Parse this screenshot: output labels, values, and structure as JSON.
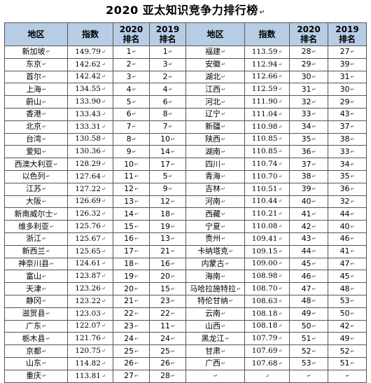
{
  "title": "2020 亚太知识竞争力排行榜",
  "headers": {
    "region": "地区",
    "index": "指数",
    "rank2020_top": "2020",
    "rank2020_bottom": "排名",
    "rank2019_top": "2019",
    "rank2019_bottom": "排名"
  },
  "left_rows": [
    {
      "region": "新加坡",
      "index": "149.79",
      "rank2020": "1",
      "rank2019": "1"
    },
    {
      "region": "东京",
      "index": "142.62",
      "rank2020": "2",
      "rank2019": "3"
    },
    {
      "region": "首尔",
      "index": "142.42",
      "rank2020": "3",
      "rank2019": "2"
    },
    {
      "region": "上海",
      "index": "134.55",
      "rank2020": "4",
      "rank2019": "4"
    },
    {
      "region": "蔚山",
      "index": "133.90",
      "rank2020": "5",
      "rank2019": "6"
    },
    {
      "region": "香港",
      "index": "133.43",
      "rank2020": "6",
      "rank2019": "8"
    },
    {
      "region": "北京",
      "index": "133.31",
      "rank2020": "7",
      "rank2019": "7"
    },
    {
      "region": "台湾",
      "index": "130.58",
      "rank2020": "8",
      "rank2019": "10"
    },
    {
      "region": "爱知",
      "index": "130.36",
      "rank2020": "9",
      "rank2019": "14"
    },
    {
      "region": "西澳大利亚",
      "index": "128.29",
      "rank2020": "10",
      "rank2019": "17"
    },
    {
      "region": "以色列",
      "index": "127.64",
      "rank2020": "11",
      "rank2019": "5"
    },
    {
      "region": "江苏",
      "index": "127.22",
      "rank2020": "12",
      "rank2019": "9"
    },
    {
      "region": "大阪",
      "index": "126.69",
      "rank2020": "13",
      "rank2019": "12"
    },
    {
      "region": "新南威尔士",
      "index": "126.32",
      "rank2020": "14",
      "rank2019": "18"
    },
    {
      "region": "维多利亚",
      "index": "125.76",
      "rank2020": "15",
      "rank2019": "19"
    },
    {
      "region": "浙江",
      "index": "125.67",
      "rank2020": "16",
      "rank2019": "13"
    },
    {
      "region": "新西兰",
      "index": "125.65",
      "rank2020": "17",
      "rank2019": "21"
    },
    {
      "region": "神奈川县",
      "index": "124.61",
      "rank2020": "18",
      "rank2019": "16"
    },
    {
      "region": "富山",
      "index": "123.87",
      "rank2020": "19",
      "rank2019": "20"
    },
    {
      "region": "天津",
      "index": "123.26",
      "rank2020": "20",
      "rank2019": "15"
    },
    {
      "region": "静冈",
      "index": "123.22",
      "rank2020": "21",
      "rank2019": "23"
    },
    {
      "region": "滋贺县",
      "index": "123.03",
      "rank2020": "22",
      "rank2019": "22"
    },
    {
      "region": "广东",
      "index": "122.07",
      "rank2020": "23",
      "rank2019": "11"
    },
    {
      "region": "栃木县",
      "index": "121.76",
      "rank2020": "24",
      "rank2019": "24"
    },
    {
      "region": "京都",
      "index": "120.75",
      "rank2020": "25",
      "rank2019": "25"
    },
    {
      "region": "山东",
      "index": "114.82",
      "rank2020": "26",
      "rank2019": "26"
    },
    {
      "region": "重庆",
      "index": "113.81",
      "rank2020": "27",
      "rank2019": "28"
    }
  ],
  "right_rows": [
    {
      "region": "福建",
      "index": "113.59",
      "rank2020": "28",
      "rank2019": "27"
    },
    {
      "region": "安徽",
      "index": "112.94",
      "rank2020": "29",
      "rank2019": "39"
    },
    {
      "region": "湖北",
      "index": "112.66",
      "rank2020": "30",
      "rank2019": "31"
    },
    {
      "region": "江西",
      "index": "112.59",
      "rank2020": "31",
      "rank2019": "30"
    },
    {
      "region": "河北",
      "index": "111.90",
      "rank2020": "32",
      "rank2019": "29"
    },
    {
      "region": "辽宁",
      "index": "111.04",
      "rank2020": "33",
      "rank2019": "43"
    },
    {
      "region": "新疆",
      "index": "110.98",
      "rank2020": "34",
      "rank2019": "37"
    },
    {
      "region": "陕西",
      "index": "110.85",
      "rank2020": "35",
      "rank2019": "38"
    },
    {
      "region": "湖南",
      "index": "110.85",
      "rank2020": "36",
      "rank2019": "33"
    },
    {
      "region": "四川",
      "index": "110.74",
      "rank2020": "37",
      "rank2019": "34"
    },
    {
      "region": "青海",
      "index": "110.70",
      "rank2020": "38",
      "rank2019": "35"
    },
    {
      "region": "吉林",
      "index": "110.51",
      "rank2020": "39",
      "rank2019": "36"
    },
    {
      "region": "河南",
      "index": "110.44",
      "rank2020": "40",
      "rank2019": "32"
    },
    {
      "region": "西藏",
      "index": "110.21",
      "rank2020": "41",
      "rank2019": "44"
    },
    {
      "region": "宁夏",
      "index": "110.08",
      "rank2020": "42",
      "rank2019": "40"
    },
    {
      "region": "贵州",
      "index": "109.41",
      "rank2020": "43",
      "rank2019": "46"
    },
    {
      "region": "卡纳塔克",
      "index": "109.15",
      "rank2020": "44",
      "rank2019": "41"
    },
    {
      "region": "内蒙古",
      "index": "109.00",
      "rank2020": "45",
      "rank2019": "47"
    },
    {
      "region": "海南",
      "index": "108.98",
      "rank2020": "46",
      "rank2019": "45"
    },
    {
      "region": "马哈拉施特拉",
      "index": "108.70",
      "rank2020": "47",
      "rank2019": "48"
    },
    {
      "region": "特伦甘纳",
      "index": "108.63",
      "rank2020": "48",
      "rank2019": "53"
    },
    {
      "region": "云南",
      "index": "108.18",
      "rank2020": "49",
      "rank2019": "50"
    },
    {
      "region": "山西",
      "index": "108.18",
      "rank2020": "50",
      "rank2019": "42"
    },
    {
      "region": "黑龙江",
      "index": "107.79",
      "rank2020": "51",
      "rank2019": "49"
    },
    {
      "region": "甘肃",
      "index": "107.69",
      "rank2020": "52",
      "rank2019": "52"
    },
    {
      "region": "广西",
      "index": "107.68",
      "rank2020": "53",
      "rank2019": "51"
    },
    {
      "region": "",
      "index": "",
      "rank2020": "",
      "rank2019": ""
    }
  ],
  "colors": {
    "header_bg": "#b7cde6",
    "border": "#555555"
  }
}
